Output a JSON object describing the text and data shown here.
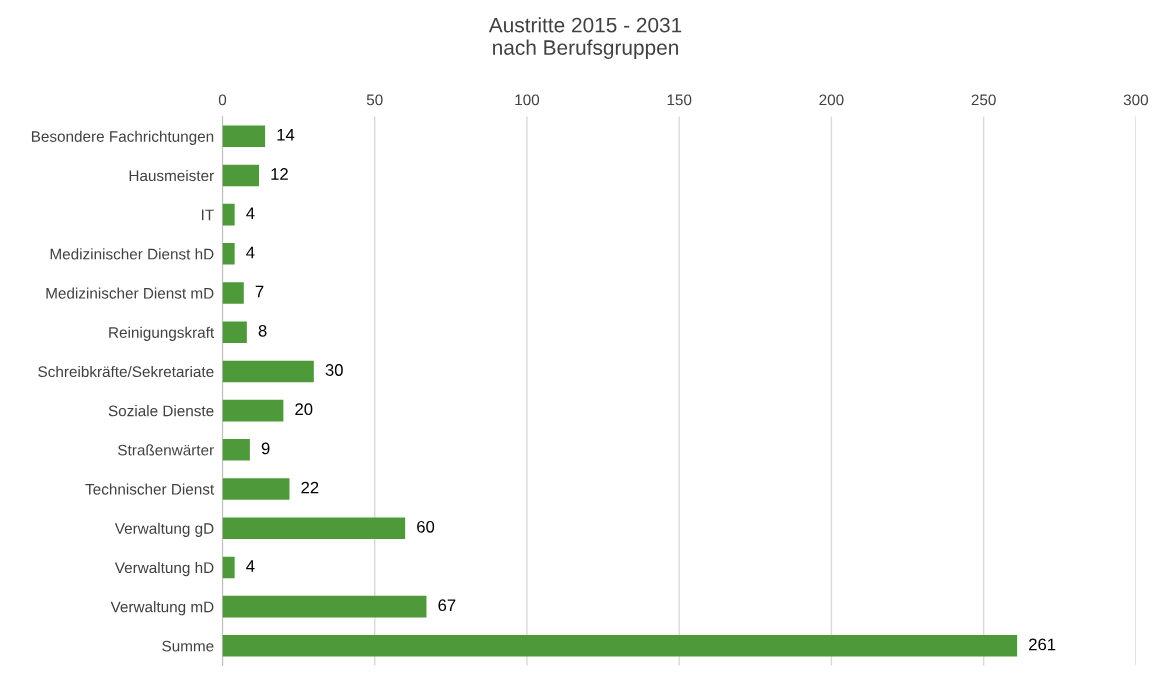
{
  "chart_data": {
    "type": "bar",
    "orientation": "horizontal",
    "title": "Austritte 2015 - 2031\nnach Berufsgruppen",
    "categories": [
      "Besondere Fachrichtungen",
      "Hausmeister",
      "IT",
      "Medizinischer Dienst hD",
      "Medizinischer Dienst mD",
      "Reinigungskraft",
      "Schreibkräfte/Sekretariate",
      "Soziale Dienste",
      "Straßenwärter",
      "Technischer Dienst",
      "Verwaltung gD",
      "Verwaltung hD",
      "Verwaltung mD",
      "Summe"
    ],
    "values": [
      14,
      12,
      4,
      4,
      7,
      8,
      30,
      20,
      9,
      22,
      60,
      4,
      67,
      261
    ],
    "color": "#4e9a3a",
    "xlim": [
      0,
      300
    ],
    "xticks": [
      0,
      50,
      100,
      150,
      200,
      250,
      300
    ],
    "grid": "x",
    "data_labels": true,
    "legend": false
  }
}
